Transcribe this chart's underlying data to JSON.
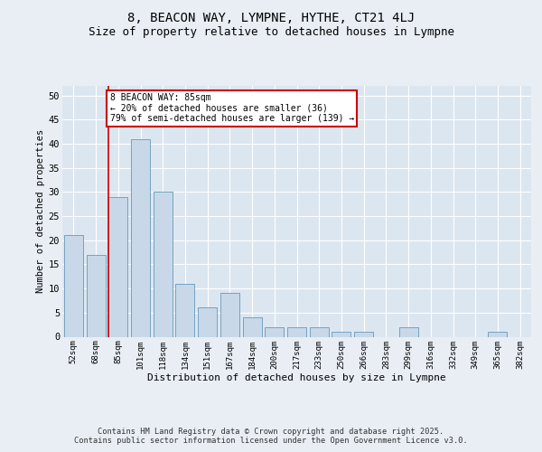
{
  "title_line1": "8, BEACON WAY, LYMPNE, HYTHE, CT21 4LJ",
  "title_line2": "Size of property relative to detached houses in Lympne",
  "xlabel": "Distribution of detached houses by size in Lympne",
  "ylabel": "Number of detached properties",
  "categories": [
    "52sqm",
    "68sqm",
    "85sqm",
    "101sqm",
    "118sqm",
    "134sqm",
    "151sqm",
    "167sqm",
    "184sqm",
    "200sqm",
    "217sqm",
    "233sqm",
    "250sqm",
    "266sqm",
    "283sqm",
    "299sqm",
    "316sqm",
    "332sqm",
    "349sqm",
    "365sqm",
    "382sqm"
  ],
  "values": [
    21,
    17,
    29,
    41,
    30,
    11,
    6,
    9,
    4,
    2,
    2,
    2,
    1,
    1,
    0,
    2,
    0,
    0,
    0,
    1,
    0
  ],
  "bar_color": "#c8d8e8",
  "bar_edge_color": "#6699bb",
  "highlight_index": 2,
  "highlight_line_color": "#cc0000",
  "annotation_text": "8 BEACON WAY: 85sqm\n← 20% of detached houses are smaller (36)\n79% of semi-detached houses are larger (139) →",
  "annotation_box_color": "#ffffff",
  "annotation_box_edge_color": "#cc0000",
  "ylim": [
    0,
    52
  ],
  "yticks": [
    0,
    5,
    10,
    15,
    20,
    25,
    30,
    35,
    40,
    45,
    50
  ],
  "footer_text": "Contains HM Land Registry data © Crown copyright and database right 2025.\nContains public sector information licensed under the Open Government Licence v3.0.",
  "background_color": "#e8eef4",
  "plot_background_color": "#dce6f0",
  "grid_color": "#ffffff",
  "title_fontsize": 10,
  "subtitle_fontsize": 9,
  "bar_width": 0.85
}
